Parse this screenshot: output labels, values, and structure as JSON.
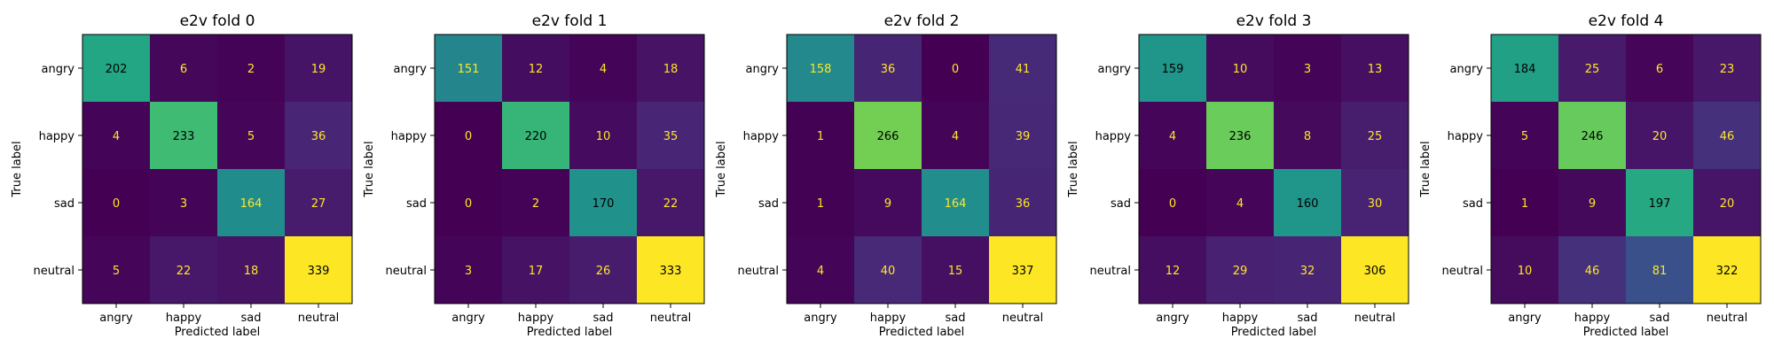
{
  "chart_data": [
    {
      "type": "heatmap",
      "title": "e2v fold 0",
      "xlabel": "Predicted label",
      "ylabel": "True label",
      "x_categories": [
        "angry",
        "happy",
        "sad",
        "neutral"
      ],
      "y_categories": [
        "angry",
        "happy",
        "sad",
        "neutral"
      ],
      "values": [
        [
          202,
          6,
          2,
          19
        ],
        [
          4,
          233,
          5,
          36
        ],
        [
          0,
          3,
          164,
          27
        ],
        [
          5,
          22,
          18,
          339
        ]
      ]
    },
    {
      "type": "heatmap",
      "title": "e2v fold 1",
      "xlabel": "Predicted label",
      "ylabel": "True label",
      "x_categories": [
        "angry",
        "happy",
        "sad",
        "neutral"
      ],
      "y_categories": [
        "angry",
        "happy",
        "sad",
        "neutral"
      ],
      "values": [
        [
          151,
          12,
          4,
          18
        ],
        [
          0,
          220,
          10,
          35
        ],
        [
          0,
          2,
          170,
          22
        ],
        [
          3,
          17,
          26,
          333
        ]
      ]
    },
    {
      "type": "heatmap",
      "title": "e2v fold 2",
      "xlabel": "Predicted label",
      "ylabel": "True label",
      "x_categories": [
        "angry",
        "happy",
        "sad",
        "neutral"
      ],
      "y_categories": [
        "angry",
        "happy",
        "sad",
        "neutral"
      ],
      "values": [
        [
          158,
          36,
          0,
          41
        ],
        [
          1,
          266,
          4,
          39
        ],
        [
          1,
          9,
          164,
          36
        ],
        [
          4,
          40,
          15,
          337
        ]
      ]
    },
    {
      "type": "heatmap",
      "title": "e2v fold 3",
      "xlabel": "Predicted label",
      "ylabel": "True label",
      "x_categories": [
        "angry",
        "happy",
        "sad",
        "neutral"
      ],
      "y_categories": [
        "angry",
        "happy",
        "sad",
        "neutral"
      ],
      "values": [
        [
          159,
          10,
          3,
          13
        ],
        [
          4,
          236,
          8,
          25
        ],
        [
          0,
          4,
          160,
          30
        ],
        [
          12,
          29,
          32,
          306
        ]
      ]
    },
    {
      "type": "heatmap",
      "title": "e2v fold 4",
      "xlabel": "Predicted label",
      "ylabel": "True label",
      "x_categories": [
        "angry",
        "happy",
        "sad",
        "neutral"
      ],
      "y_categories": [
        "angry",
        "happy",
        "sad",
        "neutral"
      ],
      "values": [
        [
          184,
          25,
          6,
          23
        ],
        [
          5,
          246,
          20,
          46
        ],
        [
          1,
          9,
          197,
          20
        ],
        [
          10,
          46,
          81,
          322
        ]
      ]
    }
  ],
  "colormap": "viridis",
  "colors": {
    "dark_text": "#000000",
    "light_text": "#fde725"
  }
}
